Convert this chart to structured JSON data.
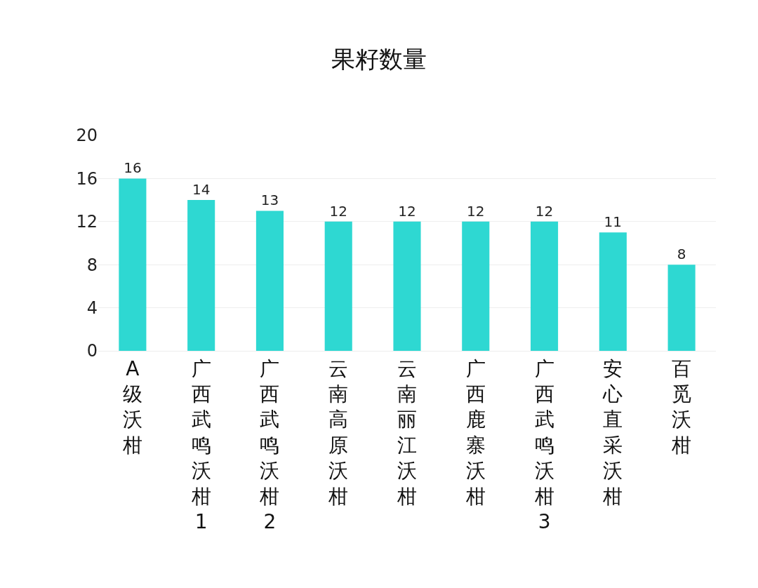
{
  "chart_data": {
    "type": "bar",
    "title": "果籽数量",
    "categories": [
      "A级沃柑",
      "广西武鸣沃柑1",
      "广西武鸣沃柑2",
      "云南高原沃柑",
      "云南丽江沃柑",
      "广西鹿寨沃柑",
      "广西武鸣沃柑3",
      "安心直采沃柑",
      "百觅沃柑"
    ],
    "values": [
      16,
      14,
      13,
      12,
      12,
      12,
      12,
      11,
      8
    ],
    "color": "#2ed8d2",
    "ylim": [
      0,
      20
    ],
    "yticks": [
      0,
      4,
      8,
      12,
      16,
      20
    ],
    "grid": "y",
    "data_labels": true,
    "legend": false
  }
}
